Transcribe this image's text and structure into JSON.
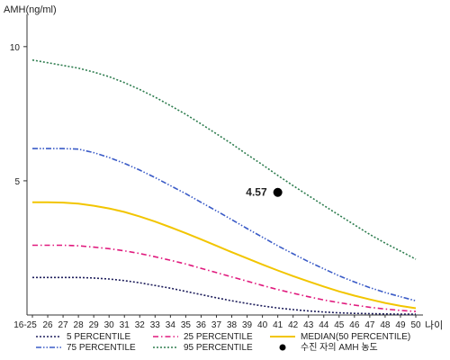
{
  "chart_data": {
    "type": "line",
    "ylabel": "AMH(ng/ml)",
    "xlabel": "나이",
    "ylim": [
      0,
      11
    ],
    "yticks": [
      5,
      10
    ],
    "x": [
      "16-25",
      "26",
      "27",
      "28",
      "29",
      "30",
      "31",
      "32",
      "33",
      "34",
      "35",
      "36",
      "37",
      "38",
      "39",
      "40",
      "41",
      "42",
      "43",
      "44",
      "45",
      "46",
      "47",
      "48",
      "49",
      "50"
    ],
    "series": [
      {
        "name": "5 PERCENTILE",
        "color": "#1f1f5c",
        "dash": "dotted",
        "values": [
          1.4,
          1.4,
          1.4,
          1.4,
          1.38,
          1.34,
          1.28,
          1.2,
          1.1,
          1.0,
          0.88,
          0.76,
          0.64,
          0.53,
          0.43,
          0.34,
          0.26,
          0.2,
          0.15,
          0.11,
          0.08,
          0.06,
          0.05,
          0.04,
          0.03,
          0.03
        ]
      },
      {
        "name": "25 PERCENTILE",
        "color": "#e0197d",
        "dash": "dashdot",
        "values": [
          2.6,
          2.6,
          2.6,
          2.58,
          2.53,
          2.47,
          2.39,
          2.29,
          2.17,
          2.04,
          1.9,
          1.74,
          1.58,
          1.42,
          1.26,
          1.1,
          0.95,
          0.81,
          0.68,
          0.56,
          0.46,
          0.37,
          0.29,
          0.22,
          0.17,
          0.13
        ]
      },
      {
        "name": "MEDIAN(50 PERCENTILE)",
        "color": "#f2c500",
        "dash": "solid",
        "values": [
          4.2,
          4.2,
          4.19,
          4.15,
          4.07,
          3.97,
          3.84,
          3.67,
          3.48,
          3.27,
          3.05,
          2.82,
          2.58,
          2.34,
          2.11,
          1.88,
          1.66,
          1.45,
          1.25,
          1.06,
          0.88,
          0.72,
          0.58,
          0.45,
          0.34,
          0.25
        ]
      },
      {
        "name": "75 PERCENTILE",
        "color": "#3a5bc7",
        "dash": "dashdotdot",
        "values": [
          6.2,
          6.2,
          6.2,
          6.18,
          6.05,
          5.87,
          5.65,
          5.4,
          5.12,
          4.82,
          4.52,
          4.2,
          3.88,
          3.55,
          3.22,
          2.9,
          2.58,
          2.28,
          1.99,
          1.72,
          1.46,
          1.23,
          1.02,
          0.84,
          0.68,
          0.53
        ]
      },
      {
        "name": "95 PERCENTILE",
        "color": "#2e7d4f",
        "dash": "dotted",
        "values": [
          9.5,
          9.4,
          9.3,
          9.2,
          9.05,
          8.88,
          8.66,
          8.4,
          8.12,
          7.8,
          7.48,
          7.12,
          6.75,
          6.38,
          5.98,
          5.6,
          5.2,
          4.82,
          4.45,
          4.08,
          3.72,
          3.36,
          3.0,
          2.68,
          2.38,
          2.08
        ]
      }
    ],
    "points": [
      {
        "name": "수진 자의 AMH 농도",
        "x": "41",
        "y": 4.57,
        "label": "4.57",
        "color": "#000000"
      }
    ],
    "legend_order": [
      "5 PERCENTILE",
      "25 PERCENTILE",
      "MEDIAN(50 PERCENTILE)",
      "75 PERCENTILE",
      "95 PERCENTILE",
      "수진 자의 AMH 농도"
    ],
    "legend_position": "bottom",
    "grid": false
  }
}
